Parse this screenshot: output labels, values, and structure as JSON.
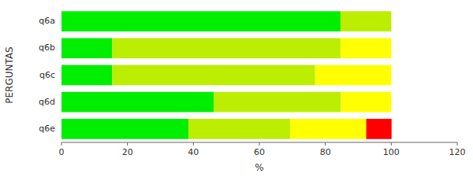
{
  "chart_data": {
    "type": "bar",
    "orientation": "horizontal",
    "stacked": true,
    "grid": false,
    "xlabel": "%",
    "ylabel": "PERGUNTAS",
    "categories": [
      "q6a",
      "q6b",
      "q6c",
      "q6d",
      "q6e"
    ],
    "series": [
      {
        "color": "#00EE00",
        "values": [
          84.6,
          15.4,
          15.4,
          46.2,
          38.5
        ]
      },
      {
        "color": "#BBEE00",
        "values": [
          15.4,
          69.2,
          61.5,
          38.5,
          30.8
        ]
      },
      {
        "color": "#FFFF00",
        "values": [
          0.0,
          15.4,
          23.1,
          15.3,
          23.1
        ]
      },
      {
        "color": "#FF0000",
        "values": [
          0.0,
          0.0,
          0.0,
          0.0,
          7.7
        ]
      }
    ],
    "xlim": [
      0,
      120
    ],
    "xticks": [
      0,
      20,
      40,
      60,
      80,
      100,
      120
    ]
  }
}
